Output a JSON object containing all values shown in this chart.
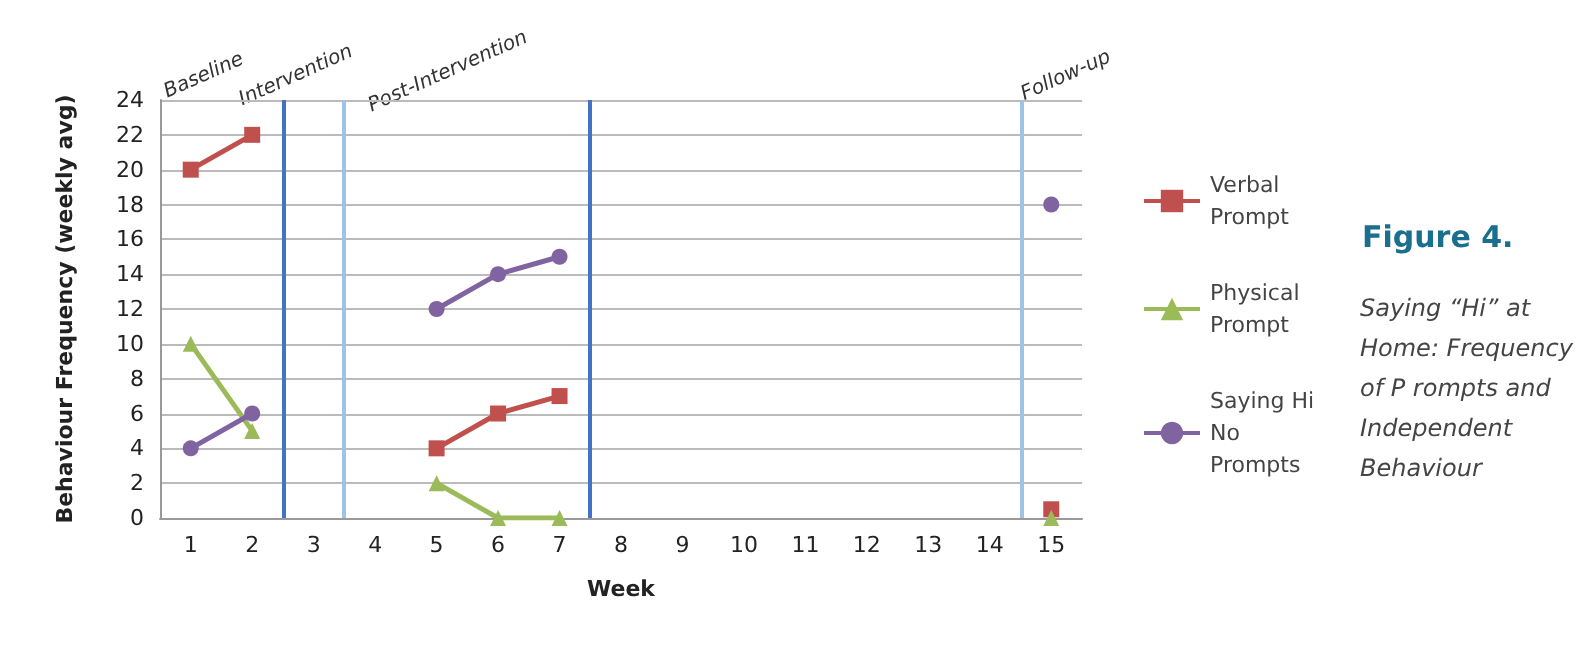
{
  "chart_data": {
    "type": "line",
    "title": "Figure 4.",
    "subtitle": "Saying “Hi” at Home: Frequency of P rompts and Independent Behaviour",
    "xlabel": "Week",
    "ylabel": "Behaviour Frequency (weekly avg)",
    "x": [
      1,
      2,
      3,
      4,
      5,
      6,
      7,
      8,
      9,
      10,
      11,
      12,
      13,
      14,
      15
    ],
    "xlim": [
      0.5,
      15.5
    ],
    "xticks": [
      1,
      2,
      3,
      4,
      5,
      6,
      7,
      8,
      9,
      10,
      11,
      12,
      13,
      14,
      15
    ],
    "ylim": [
      0,
      24
    ],
    "yticks": [
      0,
      2,
      4,
      6,
      8,
      10,
      12,
      14,
      16,
      18,
      20,
      22,
      24
    ],
    "series": [
      {
        "name": "Verbal Prompt",
        "color": "#c0504d",
        "marker": "square",
        "values": [
          20,
          22,
          null,
          null,
          4,
          6,
          7,
          null,
          null,
          null,
          null,
          null,
          null,
          null,
          0.5
        ]
      },
      {
        "name": "Physical Prompt",
        "color": "#9bbb59",
        "marker": "triangle",
        "values": [
          10,
          5,
          null,
          null,
          2,
          0,
          0,
          null,
          null,
          null,
          null,
          null,
          null,
          null,
          0
        ]
      },
      {
        "name": "Saying Hi No Prompts",
        "color": "#8064a2",
        "marker": "circle",
        "values": [
          4,
          6,
          null,
          null,
          12,
          14,
          15,
          null,
          null,
          null,
          null,
          null,
          null,
          null,
          18
        ]
      }
    ],
    "ref_lines": [
      {
        "axis": "x",
        "value": 2.5,
        "color": "#4472c4"
      },
      {
        "axis": "x",
        "value": 3.5,
        "color": "#9dc3e6"
      },
      {
        "axis": "x",
        "value": 7.5,
        "color": "#4472c4"
      },
      {
        "axis": "x",
        "value": 14.5,
        "color": "#9dc3e6"
      }
    ],
    "annotations": [
      "Baseline",
      "Intervention",
      "Post-Intervention",
      "Follow-up"
    ],
    "grid": "y",
    "legend": "right"
  }
}
